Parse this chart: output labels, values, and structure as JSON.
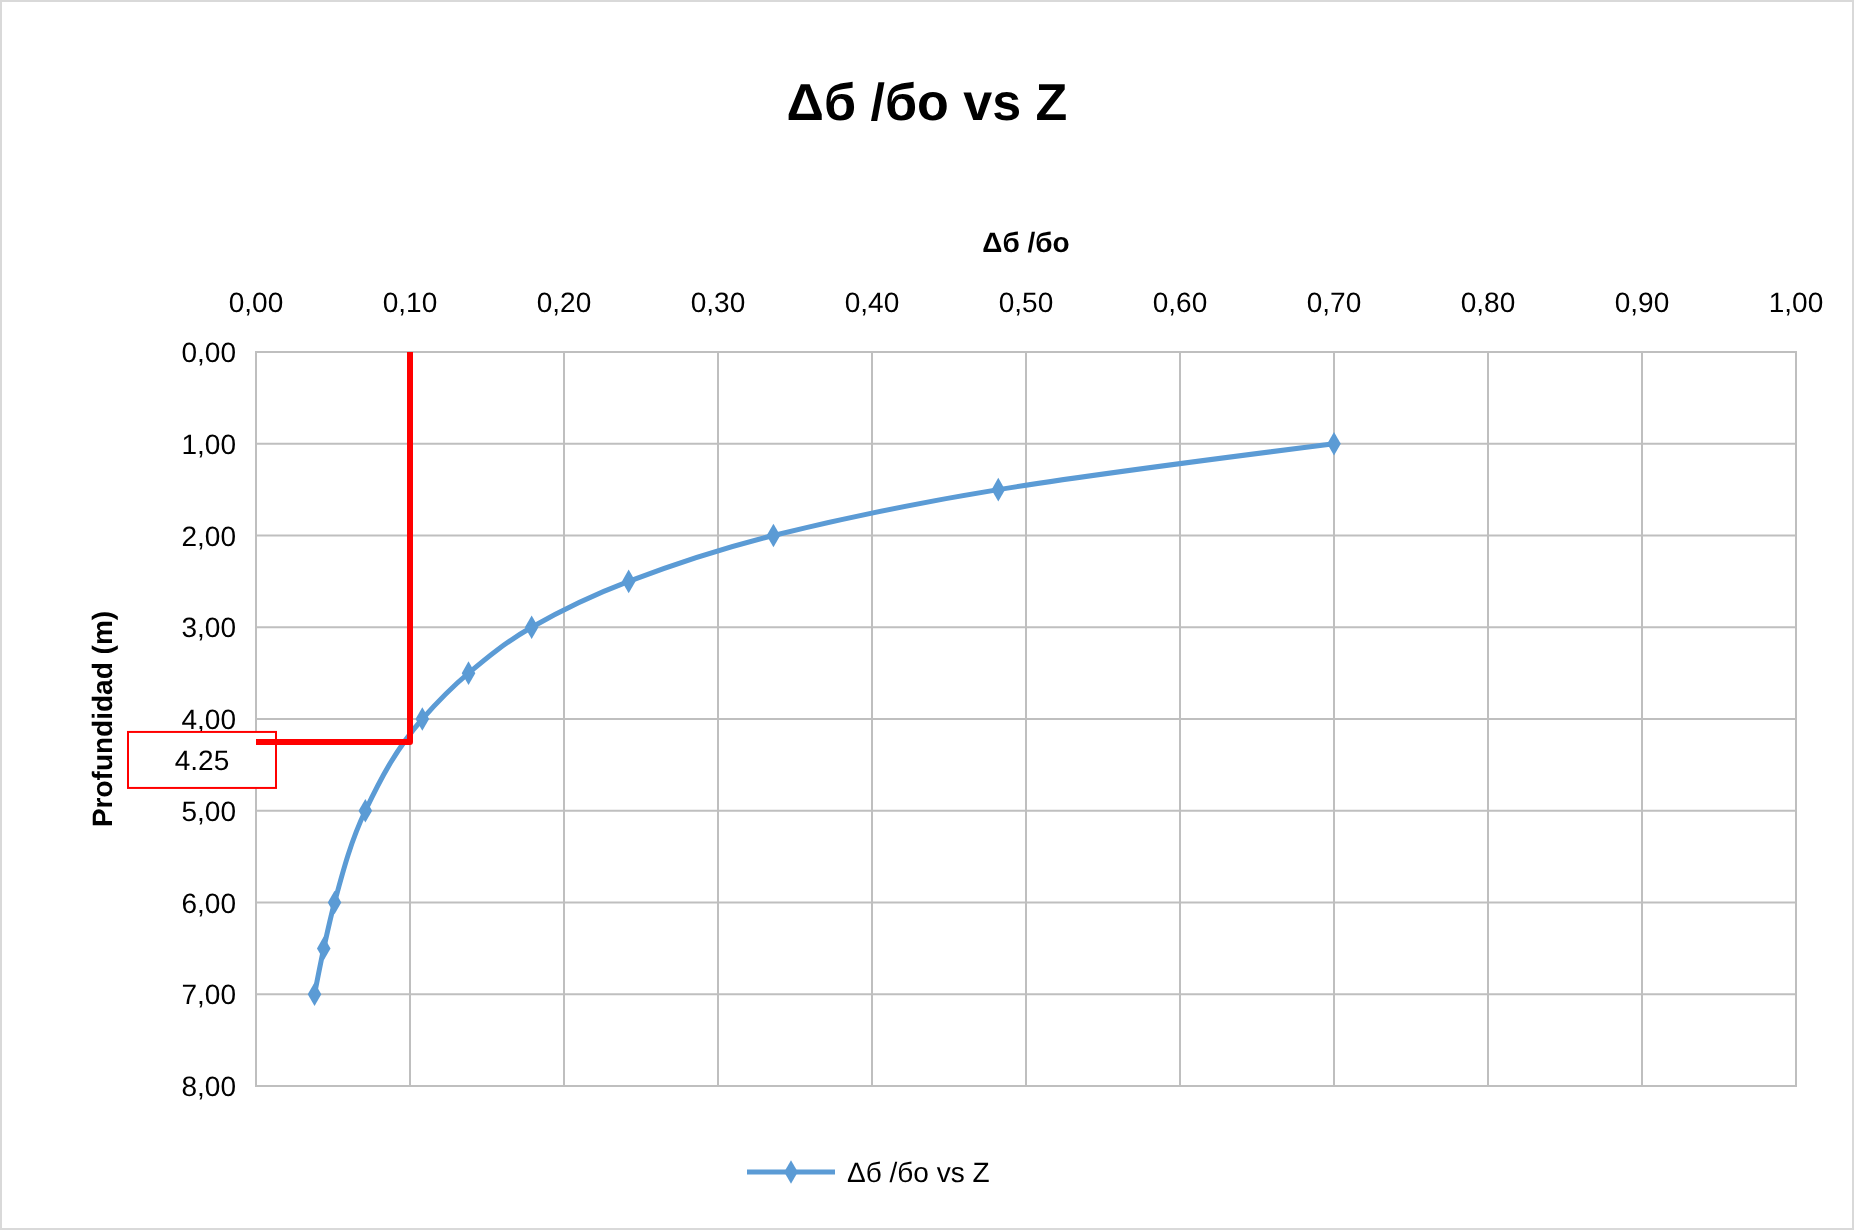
{
  "chart_data": {
    "type": "line",
    "title": "Δб /бo vs Z",
    "xlabel": "Δб /бo",
    "ylabel": "Profundidad (m)",
    "xlim": [
      0,
      1
    ],
    "xticks": [
      {
        "value": 0,
        "label": "0,00"
      },
      {
        "value": 0.1,
        "label": "0,10"
      },
      {
        "value": 0.2,
        "label": "0,20"
      },
      {
        "value": 0.3,
        "label": "0,30"
      },
      {
        "value": 0.4,
        "label": "0,40"
      },
      {
        "value": 0.5,
        "label": "0,50"
      },
      {
        "value": 0.6,
        "label": "0,60"
      },
      {
        "value": 0.7,
        "label": "0,70"
      },
      {
        "value": 0.8,
        "label": "0,80"
      },
      {
        "value": 0.9,
        "label": "0,90"
      },
      {
        "value": 1,
        "label": "1,00"
      }
    ],
    "ylim": [
      8,
      0
    ],
    "yticks": [
      {
        "value": 0,
        "label": "0,00"
      },
      {
        "value": 1,
        "label": "1,00"
      },
      {
        "value": 2,
        "label": "2,00"
      },
      {
        "value": 3,
        "label": "3,00"
      },
      {
        "value": 4,
        "label": "4,00"
      },
      {
        "value": 5,
        "label": "5,00"
      },
      {
        "value": 6,
        "label": "6,00"
      },
      {
        "value": 7,
        "label": "7,00"
      },
      {
        "value": 8,
        "label": "8,00"
      }
    ],
    "grid": true,
    "legend": "bottom",
    "marker": "diamond",
    "series": [
      {
        "name": "Δб /бo vs Z",
        "color": "#5b9bd5",
        "x": [
          0.7,
          0.482,
          0.336,
          0.242,
          0.179,
          0.138,
          0.108,
          0.071,
          0.051,
          0.044,
          0.038
        ],
        "values": [
          1,
          1.5,
          2,
          2.5,
          3,
          3.5,
          4,
          5,
          6,
          6.5,
          7
        ]
      },
      {
        "color": "#ff0000",
        "marker": "none",
        "x": [
          0.1,
          0.1,
          0
        ],
        "values": [
          0,
          4.25,
          4.25
        ]
      }
    ],
    "annotations": [
      {
        "text": "4.25",
        "x": 0,
        "y": 4.25
      }
    ]
  }
}
